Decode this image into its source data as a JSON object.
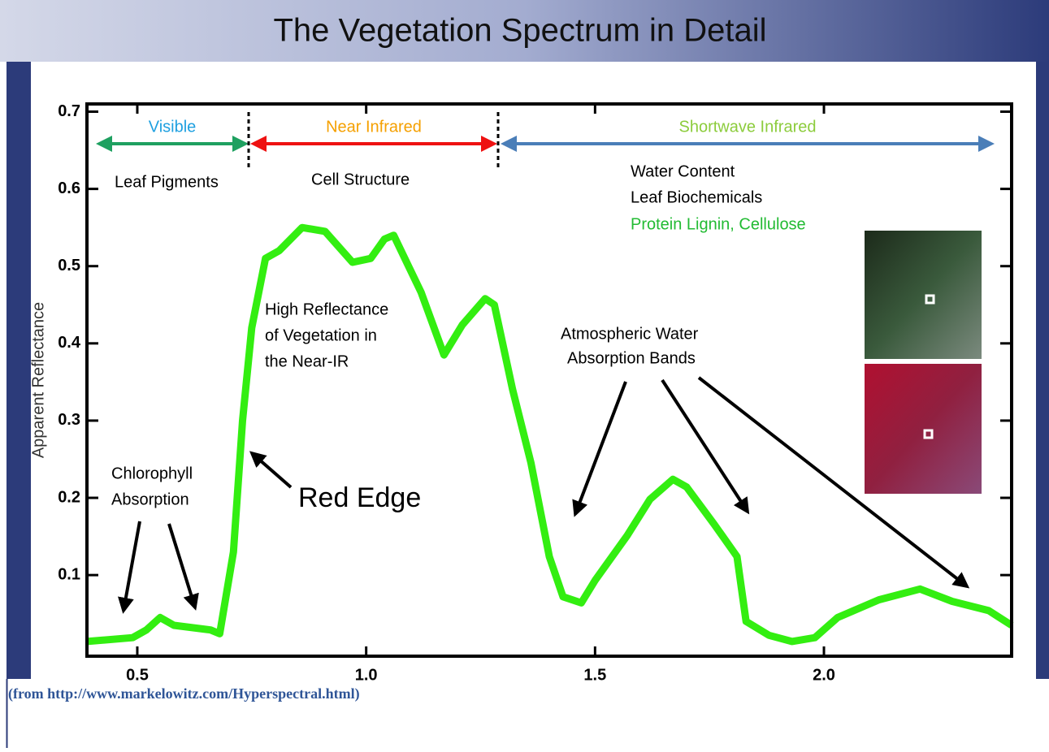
{
  "chart_data": {
    "type": "line",
    "title": "The Vegetation Spectrum in Detail",
    "y_label": "Apparent Reflectance",
    "x": [
      0.39,
      0.49,
      0.52,
      0.55,
      0.58,
      0.66,
      0.68,
      0.71,
      0.73,
      0.75,
      0.78,
      0.81,
      0.86,
      0.91,
      0.97,
      1.01,
      1.04,
      1.06,
      1.09,
      1.12,
      1.17,
      1.21,
      1.26,
      1.28,
      1.32,
      1.36,
      1.4,
      1.43,
      1.47,
      1.5,
      1.57,
      1.62,
      1.67,
      1.7,
      1.76,
      1.81,
      1.83,
      1.88,
      1.93,
      1.98,
      2.03,
      2.12,
      2.21,
      2.28,
      2.36,
      2.41
    ],
    "series": [
      {
        "color": "#33ee11",
        "values": [
          0.014,
          0.019,
          0.029,
          0.045,
          0.035,
          0.029,
          0.024,
          0.13,
          0.3,
          0.42,
          0.51,
          0.52,
          0.55,
          0.545,
          0.505,
          0.51,
          0.535,
          0.54,
          0.503,
          0.466,
          0.385,
          0.424,
          0.458,
          0.45,
          0.34,
          0.245,
          0.124,
          0.072,
          0.064,
          0.093,
          0.151,
          0.198,
          0.224,
          0.214,
          0.166,
          0.124,
          0.04,
          0.022,
          0.014,
          0.019,
          0.045,
          0.068,
          0.082,
          0.066,
          0.054,
          0.035
        ]
      }
    ],
    "xlim": [
      0.39,
      2.41
    ],
    "ylim": [
      -0.005,
      0.71
    ],
    "xticks": [
      0.5,
      {
        "value": 1,
        "label": "1.0"
      },
      1.5,
      {
        "value": 2,
        "label": "2.0"
      }
    ],
    "yticks": [
      0.1,
      0.2,
      0.3,
      0.4,
      0.5,
      0.6,
      0.7
    ],
    "regions": [
      {
        "label": "Visible",
        "color": "#1fa0e0",
        "arrow_color": "#1ea060"
      },
      {
        "label": "Near Infrared",
        "color": "#f5a000",
        "arrow_color": "#ee1111"
      },
      {
        "label": "Shortwave Infrared",
        "color": "#8ccc3c",
        "arrow_color": "#4a7eb8"
      }
    ],
    "annotations": [
      "Leaf Pigments",
      "Cell Structure",
      "Water Content",
      "Leaf Biochemicals",
      "Protein Lignin, Cellulose",
      "High Reflectance",
      "of Vegetation in",
      "the Near-IR",
      "Atmospheric Water",
      "Absorption Bands",
      "Chlorophyll",
      "Absorption",
      "Red Edge"
    ],
    "source": "(from http://www.markelowitz.com/Hyperspectral.html)"
  }
}
